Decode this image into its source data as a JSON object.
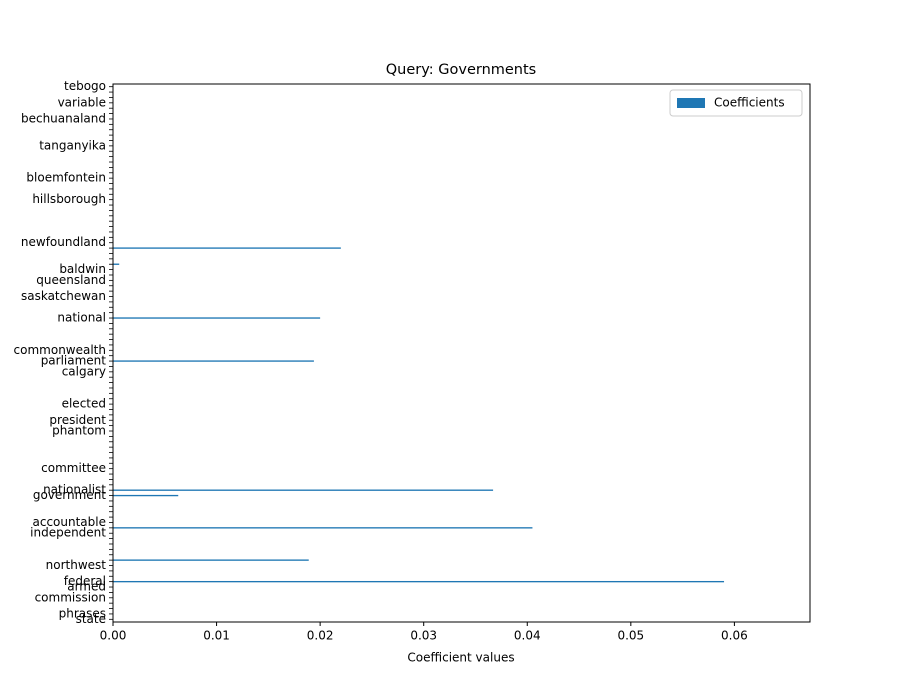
{
  "chart_data": {
    "type": "barh",
    "title": "Query: Governments",
    "xlabel": "Coefficient values",
    "categories": [
      "state",
      "phrases",
      null,
      null,
      "commission",
      null,
      "armed",
      "federal",
      null,
      null,
      "northwest",
      null,
      null,
      null,
      null,
      null,
      "independent",
      null,
      "accountable",
      null,
      null,
      null,
      null,
      "government",
      "nationalist",
      null,
      null,
      null,
      "committee",
      null,
      null,
      null,
      null,
      null,
      null,
      "phantom",
      null,
      "president",
      null,
      null,
      "elected",
      null,
      null,
      null,
      null,
      null,
      "calgary",
      null,
      "parliament",
      null,
      "commonwealth",
      null,
      null,
      null,
      null,
      null,
      "national",
      null,
      null,
      null,
      "saskatchewan",
      null,
      null,
      "queensland",
      null,
      "baldwin",
      null,
      null,
      null,
      null,
      "newfoundland",
      null,
      null,
      null,
      null,
      null,
      null,
      null,
      "hillsborough",
      null,
      null,
      null,
      "bloemfontein",
      null,
      null,
      null,
      null,
      null,
      "tanganyika",
      null,
      null,
      null,
      null,
      "bechuanaland",
      null,
      null,
      "variable",
      null,
      null,
      "tebogo"
    ],
    "series": [
      {
        "name": "Coefficients",
        "color": "#1f77b4",
        "values": [
          0,
          0,
          0,
          0,
          0,
          0,
          0,
          0.059,
          0,
          0,
          0,
          0.0189,
          0,
          0,
          0,
          0,
          0,
          0.0405,
          0,
          0,
          0,
          0,
          0,
          0.0063,
          0.0367,
          0,
          0,
          0,
          0,
          0,
          0,
          0,
          0,
          0,
          0,
          0,
          0,
          0,
          0,
          0,
          0,
          0,
          0,
          0,
          0,
          0,
          0,
          0,
          0.0194,
          0,
          0,
          0,
          0,
          0,
          0,
          0,
          0.02,
          0,
          0,
          0,
          0,
          0,
          0,
          0,
          0,
          0,
          0.0006,
          0,
          0,
          0.022,
          0,
          0,
          0,
          0,
          0,
          0,
          0,
          0,
          0,
          0,
          0,
          0,
          0,
          0,
          0,
          0,
          0,
          0,
          0,
          0,
          0,
          0,
          0,
          0,
          0,
          0,
          0,
          0,
          0,
          0
        ]
      }
    ],
    "xlim": [
      0,
      0.0673
    ],
    "xticks": [
      {
        "value": 0,
        "label": "0.00"
      },
      {
        "value": 0.01,
        "label": "0.01"
      },
      {
        "value": 0.02,
        "label": "0.02"
      },
      {
        "value": 0.03,
        "label": "0.03"
      },
      {
        "value": 0.04,
        "label": "0.04"
      },
      {
        "value": 0.05,
        "label": "0.05"
      },
      {
        "value": 0.06,
        "label": "0.06"
      }
    ],
    "legend": "upper right"
  }
}
